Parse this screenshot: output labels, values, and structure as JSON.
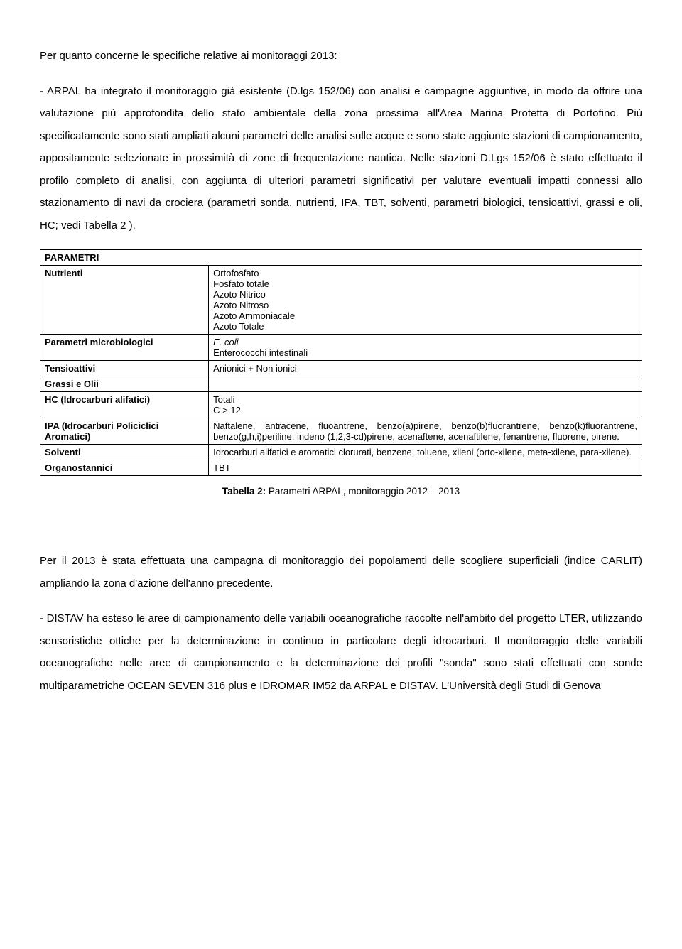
{
  "paragraphs": {
    "p1": "Per quanto concerne le specifiche relative ai monitoraggi 2013:",
    "p2": "- ARPAL ha integrato il monitoraggio già esistente (D.lgs 152/06) con analisi e campagne aggiuntive, in modo da offrire una valutazione più approfondita dello stato ambientale della zona prossima all'Area Marina Protetta di Portofino. Più specificatamente sono stati ampliati alcuni parametri delle analisi sulle acque e sono state aggiunte stazioni di campionamento, appositamente selezionate in prossimità di zone di frequentazione nautica. Nelle stazioni D.Lgs 152/06 è stato effettuato il profilo completo di analisi, con aggiunta di ulteriori parametri significativi per valutare eventuali impatti connessi allo stazionamento di navi da crociera (parametri sonda, nutrienti, IPA, TBT, solventi, parametri biologici, tensioattivi, grassi e oli, HC; vedi Tabella 2 ).",
    "p3": "Per il 2013 è stata effettuata una campagna di monitoraggio dei popolamenti delle scogliere superficiali (indice CARLIT) ampliando la zona d'azione dell'anno precedente.",
    "p4": "- DISTAV ha esteso le aree di campionamento delle variabili oceanografiche raccolte nell'ambito del progetto LTER, utilizzando sensoristiche ottiche per la determinazione in continuo in particolare degli idrocarburi. Il monitoraggio delle variabili oceanografiche nelle aree di campionamento e la determinazione dei profili \"sonda\" sono stati effettuati con sonde multiparametriche OCEAN SEVEN 316 plus e IDROMAR IM52 da ARPAL e DISTAV. L'Università degli Studi di Genova"
  },
  "table": {
    "header": "PARAMETRI",
    "rows": [
      {
        "label": "Nutrienti",
        "value_html": "Ortofosfato<br>Fosfato totale<br>Azoto Nitrico<br>Azoto Nitroso<br>Azoto Ammoniacale<br>Azoto Totale"
      },
      {
        "label": "Parametri microbiologici",
        "value_html": "<span class=\"italic\">E. coli</span><br>Enterococchi intestinali"
      },
      {
        "label": "Tensioattivi",
        "value_html": "Anionici + Non ionici"
      },
      {
        "label": "Grassi e Olii",
        "value_html": ""
      },
      {
        "label": "HC (Idrocarburi alifatici)",
        "value_html": "Totali<br>C &gt; 12"
      },
      {
        "label": "IPA (Idrocarburi Policiclici Aromatici)",
        "value_html": "Naftalene, antracene, fluoantrene, benzo(a)pirene, benzo(b)fluorantrene, benzo(k)fluorantrene, benzo(g,h,i)periline, indeno (1,2,3-cd)pirene, acenaftene, acenaftilene, fenantrene, fluorene, pirene."
      },
      {
        "label": "Solventi",
        "value_html": "Idrocarburi alifatici e aromatici clorurati, benzene, toluene, xileni (orto-xilene, meta-xilene, para-xilene)."
      },
      {
        "label": "Organostannici",
        "value_html": "TBT"
      }
    ],
    "caption_bold": "Tabella 2:",
    "caption_rest": " Parametri ARPAL, monitoraggio 2012 – 2013"
  }
}
